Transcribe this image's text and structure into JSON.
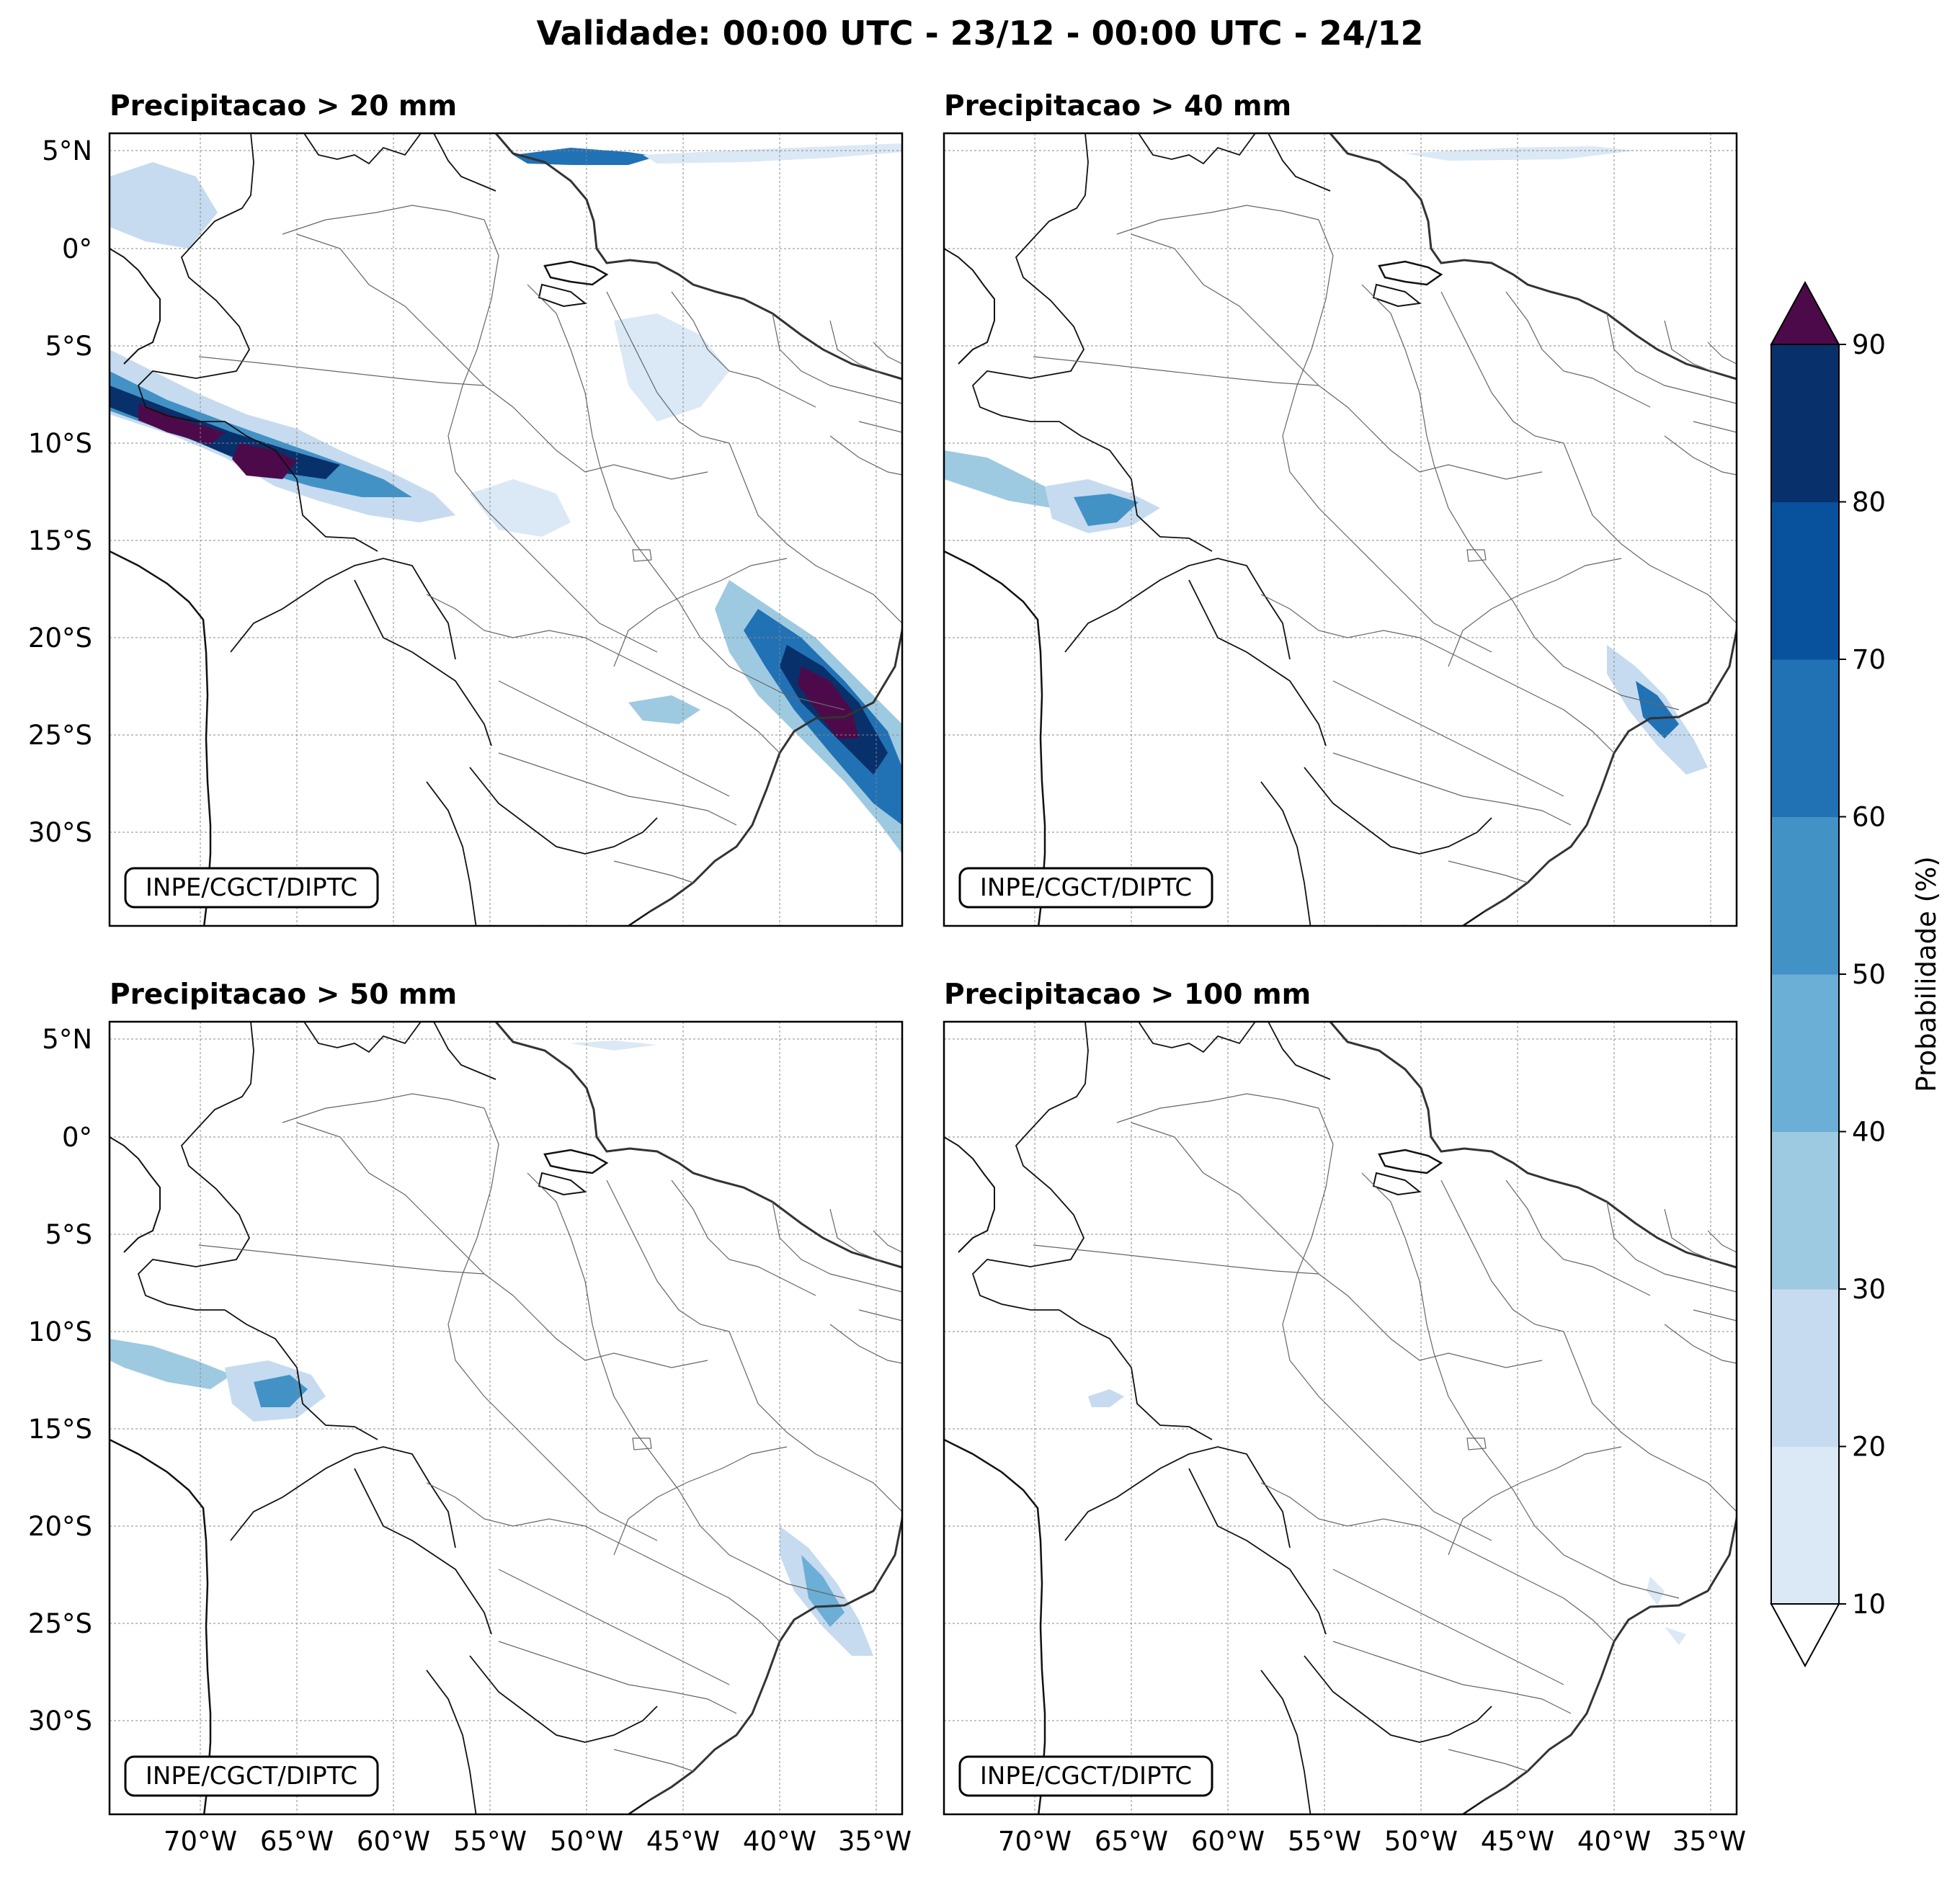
{
  "figure": {
    "title": "Validade: 00:00 UTC - 23/12 - 00:00 UTC - 24/12"
  },
  "axes": {
    "lat_labels": [
      "5°N",
      "0°",
      "5°S",
      "10°S",
      "15°S",
      "20°S",
      "25°S",
      "30°S"
    ],
    "lon_labels": [
      "70°W",
      "65°W",
      "60°W",
      "55°W",
      "50°W",
      "45°W",
      "40°W",
      "35°W"
    ]
  },
  "panels": [
    {
      "title": "Precipitacao > 20 mm",
      "watermark": "INPE/CGCT/DIPTC"
    },
    {
      "title": "Precipitacao > 40 mm",
      "watermark": "INPE/CGCT/DIPTC"
    },
    {
      "title": "Precipitacao > 50 mm",
      "watermark": "INPE/CGCT/DIPTC"
    },
    {
      "title": "Precipitacao > 100 mm",
      "watermark": "INPE/CGCT/DIPTC"
    }
  ],
  "colorbar": {
    "label": "Probabilidade (%)",
    "ticks": [
      "10",
      "20",
      "30",
      "40",
      "50",
      "60",
      "70",
      "80",
      "90"
    ],
    "colors": [
      "#dbe8f5",
      "#c6dbef",
      "#9ecae1",
      "#6baed6",
      "#4292c6",
      "#2171b5",
      "#08519c",
      "#08306b"
    ],
    "over_color": "#4d0a4a",
    "under_color": "#ffffff"
  }
}
